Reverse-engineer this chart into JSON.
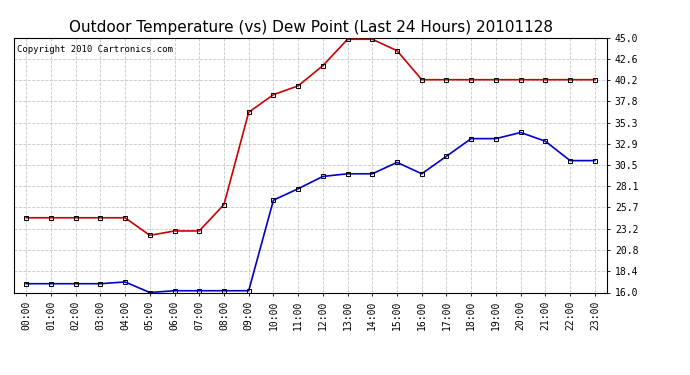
{
  "title": "Outdoor Temperature (vs) Dew Point (Last 24 Hours) 20101128",
  "copyright": "Copyright 2010 Cartronics.com",
  "hours": [
    "00:00",
    "01:00",
    "02:00",
    "03:00",
    "04:00",
    "05:00",
    "06:00",
    "07:00",
    "08:00",
    "09:00",
    "10:00",
    "11:00",
    "12:00",
    "13:00",
    "14:00",
    "15:00",
    "16:00",
    "17:00",
    "18:00",
    "19:00",
    "20:00",
    "21:00",
    "22:00",
    "23:00"
  ],
  "temp": [
    24.5,
    24.5,
    24.5,
    24.5,
    24.5,
    22.5,
    23.0,
    23.0,
    26.0,
    36.5,
    38.5,
    39.5,
    41.8,
    44.8,
    44.8,
    43.5,
    40.2,
    40.2,
    40.2,
    40.2,
    40.2,
    40.2,
    40.2,
    40.2
  ],
  "dewpoint": [
    17.0,
    17.0,
    17.0,
    17.0,
    17.2,
    16.0,
    16.2,
    16.2,
    16.2,
    16.2,
    26.5,
    27.8,
    29.2,
    29.5,
    29.5,
    30.8,
    29.5,
    31.5,
    33.5,
    33.5,
    34.2,
    33.2,
    31.0,
    31.0
  ],
  "temp_color": "#cc0000",
  "dew_color": "#0000cc",
  "marker": "s",
  "marker_size": 3,
  "ylim": [
    16.0,
    45.0
  ],
  "yticks": [
    16.0,
    18.4,
    20.8,
    23.2,
    25.7,
    28.1,
    30.5,
    32.9,
    35.3,
    37.8,
    40.2,
    42.6,
    45.0
  ],
  "background_color": "#ffffff",
  "grid_color": "#c8c8c8",
  "title_fontsize": 11,
  "tick_fontsize": 7,
  "copyright_fontsize": 6.5
}
